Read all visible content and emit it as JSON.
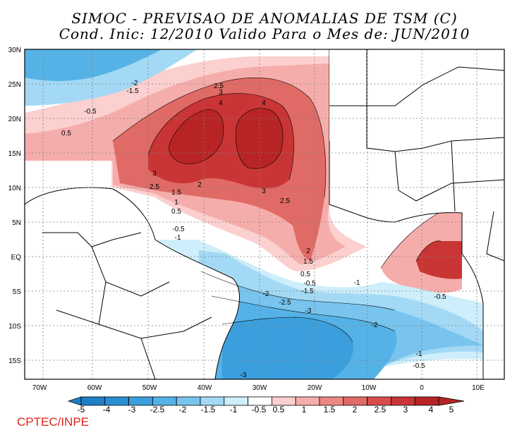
{
  "title": {
    "line1": "SIMOC - PREVISAO DE ANOMALIAS DE TSM (C)",
    "line2": "Cond. Inic: 12/2010   Valido Para o Mes de: JUN/2010"
  },
  "axes": {
    "lat_labels": [
      "30N",
      "25N",
      "20N",
      "15N",
      "10N",
      "5N",
      "EQ",
      "5S",
      "10S",
      "15S"
    ],
    "lon_labels": [
      "70W",
      "60W",
      "50W",
      "40W",
      "30W",
      "20W",
      "10W",
      "0",
      "10E"
    ]
  },
  "contour_labels": [
    {
      "text": "-2"
    },
    {
      "text": "-1.5"
    },
    {
      "text": "-0.5"
    },
    {
      "text": "0.5"
    },
    {
      "text": "2.5"
    },
    {
      "text": "3"
    },
    {
      "text": "4"
    },
    {
      "text": "4"
    },
    {
      "text": "3"
    },
    {
      "text": "2"
    },
    {
      "text": "2.5"
    },
    {
      "text": "1.5"
    },
    {
      "text": "1"
    },
    {
      "text": "0.5"
    },
    {
      "text": "3"
    },
    {
      "text": "2.5"
    },
    {
      "text": "-0.5"
    },
    {
      "text": "-1"
    },
    {
      "text": "2"
    },
    {
      "text": "1.5"
    },
    {
      "text": "0.5"
    },
    {
      "text": "-0.5"
    },
    {
      "text": "-1.5"
    },
    {
      "text": "-1"
    },
    {
      "text": "-2"
    },
    {
      "text": "-2.5"
    },
    {
      "text": "-3"
    },
    {
      "text": "-2"
    },
    {
      "text": "-0.5"
    },
    {
      "text": "-1"
    },
    {
      "text": "-0.5"
    },
    {
      "text": "-3"
    }
  ],
  "colorbar": {
    "labels": [
      "-5",
      "-4",
      "-3",
      "-2.5",
      "-2",
      "-1.5",
      "-1",
      "-0.5",
      "0.5",
      "1",
      "1.5",
      "2",
      "2.5",
      "3",
      "4",
      "5"
    ],
    "colors": [
      "#1f7fc4",
      "#2a8fd0",
      "#3a9fdc",
      "#55b2e6",
      "#78c4ee",
      "#a3d9f5",
      "#cdeefa",
      "#ffffff",
      "#fbd0cf",
      "#f5adab",
      "#ec8884",
      "#e06a65",
      "#d64d4a",
      "#c93535",
      "#b82424"
    ]
  },
  "footer": "CPTEC/INPE"
}
